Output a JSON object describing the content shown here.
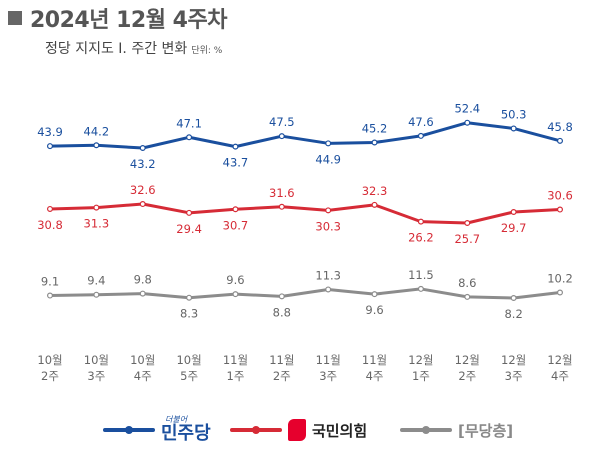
{
  "header": {
    "title": "2024년 12월 4주차",
    "subtitle": "정당 지지도 Ⅰ. 주간 변화",
    "unit": "단위: %"
  },
  "legend": {
    "dp_small_text": "더불어",
    "dp_main_text": "민주당",
    "ppp_text": "국민의힘",
    "ind_text": "[무당층]"
  },
  "chart_data": {
    "type": "line",
    "categories": [
      "10월 2주",
      "10월 3주",
      "10월 4주",
      "10월 5주",
      "11월 1주",
      "11월 2주",
      "11월 3주",
      "11월 4주",
      "12월 1주",
      "12월 2주",
      "12월 3주",
      "12월 4주"
    ],
    "category_lines": [
      [
        "10월",
        "2주"
      ],
      [
        "10월",
        "3주"
      ],
      [
        "10월",
        "4주"
      ],
      [
        "10월",
        "5주"
      ],
      [
        "11월",
        "1주"
      ],
      [
        "11월",
        "2주"
      ],
      [
        "11월",
        "3주"
      ],
      [
        "11월",
        "4주"
      ],
      [
        "12월",
        "1주"
      ],
      [
        "12월",
        "2주"
      ],
      [
        "12월",
        "3주"
      ],
      [
        "12월",
        "4주"
      ]
    ],
    "series": [
      {
        "name": "더불어민주당",
        "color": "#1a4f9e",
        "label_color": "#1a4f9e",
        "values": [
          43.9,
          44.2,
          43.2,
          47.1,
          43.7,
          47.5,
          44.9,
          45.2,
          47.6,
          52.4,
          50.3,
          45.8
        ]
      },
      {
        "name": "국민의힘",
        "color": "#d62b36",
        "label_color": "#d62b36",
        "values": [
          30.8,
          31.3,
          32.6,
          29.4,
          30.7,
          31.6,
          30.3,
          32.3,
          26.2,
          25.7,
          29.7,
          30.6
        ]
      },
      {
        "name": "무당층",
        "color": "#8c8c8c",
        "label_color": "#666666",
        "values": [
          9.1,
          9.4,
          9.8,
          8.3,
          9.6,
          8.8,
          11.3,
          9.6,
          11.5,
          8.6,
          8.2,
          10.2
        ]
      }
    ],
    "data_labels": true,
    "grid": false,
    "legend_position": "bottom"
  }
}
